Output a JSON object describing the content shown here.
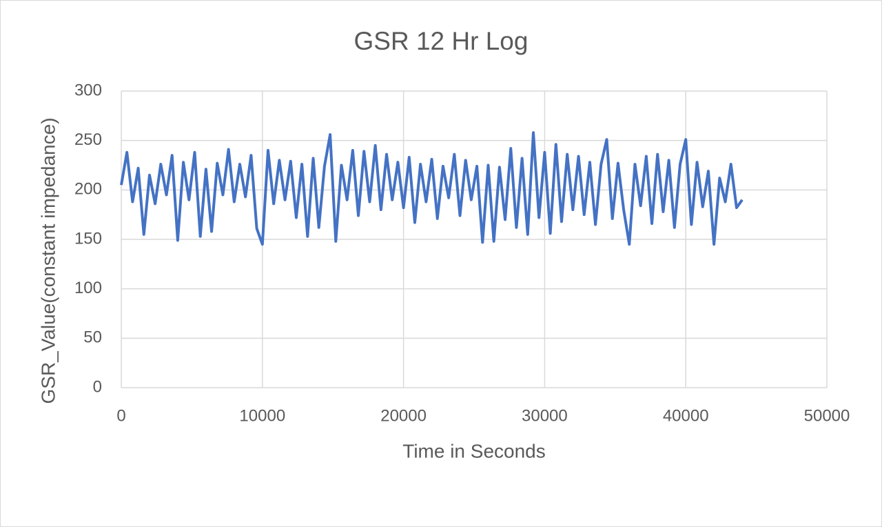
{
  "chart_data": {
    "type": "line",
    "title": "GSR 12 Hr Log",
    "x_label": "Time in Seconds",
    "y_label": "GSR_Value(constant impedance)",
    "x": [
      0,
      400,
      800,
      1200,
      1600,
      2000,
      2400,
      2800,
      3200,
      3600,
      4000,
      4400,
      4800,
      5200,
      5600,
      6000,
      6400,
      6800,
      7200,
      7600,
      8000,
      8400,
      8800,
      9200,
      9600,
      10000,
      10400,
      10800,
      11200,
      11600,
      12000,
      12400,
      12800,
      13200,
      13600,
      14000,
      14400,
      14800,
      15200,
      15600,
      16000,
      16400,
      16800,
      17200,
      17600,
      18000,
      18400,
      18800,
      19200,
      19600,
      20000,
      20400,
      20800,
      21200,
      21600,
      22000,
      22400,
      22800,
      23200,
      23600,
      24000,
      24400,
      24800,
      25200,
      25600,
      26000,
      26400,
      26800,
      27200,
      27600,
      28000,
      28400,
      28800,
      29200,
      29600,
      30000,
      30400,
      30800,
      31200,
      31600,
      32000,
      32400,
      32800,
      33200,
      33600,
      34000,
      34400,
      34800,
      35200,
      35600,
      36000,
      36400,
      36800,
      37200,
      37600,
      38000,
      38400,
      38800,
      39200,
      39600,
      40000,
      40400,
      40800,
      41200,
      41600,
      42000,
      42400,
      42800,
      43200,
      43600,
      44000
    ],
    "values": [
      205,
      238,
      188,
      222,
      155,
      215,
      186,
      226,
      195,
      235,
      149,
      228,
      190,
      238,
      153,
      221,
      158,
      227,
      195,
      241,
      188,
      226,
      193,
      235,
      161,
      145,
      240,
      186,
      230,
      190,
      229,
      172,
      226,
      153,
      232,
      162,
      224,
      256,
      148,
      225,
      190,
      240,
      174,
      239,
      188,
      245,
      180,
      236,
      190,
      228,
      182,
      233,
      167,
      226,
      188,
      231,
      171,
      224,
      192,
      236,
      174,
      230,
      190,
      224,
      147,
      225,
      148,
      223,
      170,
      242,
      162,
      232,
      155,
      258,
      172,
      238,
      156,
      246,
      168,
      236,
      180,
      234,
      175,
      228,
      165,
      226,
      251,
      171,
      227,
      180,
      145,
      226,
      184,
      234,
      166,
      236,
      178,
      230,
      162,
      226,
      251,
      165,
      228,
      183,
      219,
      145,
      212,
      188,
      226,
      182,
      190
    ],
    "color": "#4472c4",
    "xlim": [
      0,
      50000
    ],
    "xticks": [
      0,
      10000,
      20000,
      30000,
      40000,
      50000
    ],
    "ylim": [
      0,
      300
    ],
    "yticks": [
      0,
      50,
      100,
      150,
      200,
      250,
      300
    ],
    "grid": true
  }
}
